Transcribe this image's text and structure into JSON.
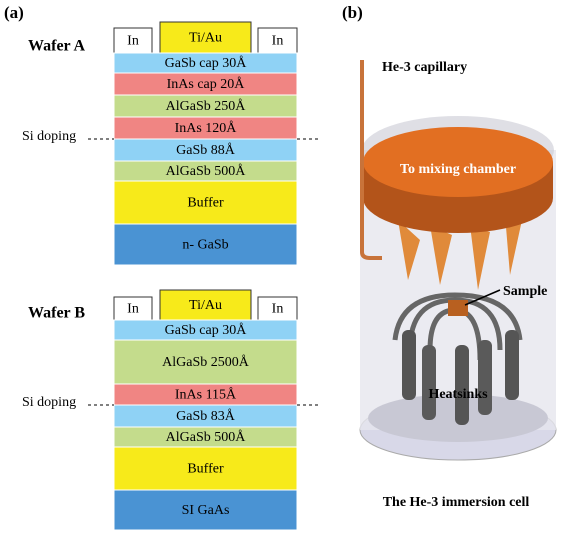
{
  "panel_a": {
    "label": "(a)",
    "wafers": [
      {
        "name": "Wafer A",
        "contacts": [
          "In",
          "Ti/Au",
          "In"
        ],
        "doping_label": "Si doping",
        "layers": [
          {
            "text": "GaSb cap 30Å",
            "color": "#8fd2f5"
          },
          {
            "text": "InAs cap 20Å",
            "color": "#f08583"
          },
          {
            "text": "AlGaSb 250Å",
            "color": "#c4dc8c"
          },
          {
            "text": "InAs 120Å",
            "color": "#f08583"
          },
          {
            "text": "GaSb 88Å",
            "color": "#8fd2f5"
          },
          {
            "text": "AlGaSb 500Å",
            "color": "#c4dc8c"
          },
          {
            "text": "Buffer",
            "color": "#f7ea1a"
          },
          {
            "text": "n- GaSb",
            "color": "#4a93d3"
          }
        ]
      },
      {
        "name": "Wafer B",
        "contacts": [
          "In",
          "Ti/Au",
          "In"
        ],
        "doping_label": "Si doping",
        "layers": [
          {
            "text": "GaSb cap 30Å",
            "color": "#8fd2f5"
          },
          {
            "text": "AlGaSb 2500Å",
            "color": "#c4dc8c"
          },
          {
            "text": "InAs 115Å",
            "color": "#f08583"
          },
          {
            "text": "GaSb 83Å",
            "color": "#8fd2f5"
          },
          {
            "text": "AlGaSb 500Å",
            "color": "#c4dc8c"
          },
          {
            "text": "Buffer",
            "color": "#f7ea1a"
          },
          {
            "text": "SI GaAs",
            "color": "#4a93d3"
          }
        ]
      }
    ]
  },
  "panel_b": {
    "label": "(b)",
    "capillary_label": "He-3 capillary",
    "chamber_label": "To mixing chamber",
    "sample_label": "Sample",
    "heatsinks_label": "Heatsinks",
    "caption": "The He-3 immersion cell"
  }
}
